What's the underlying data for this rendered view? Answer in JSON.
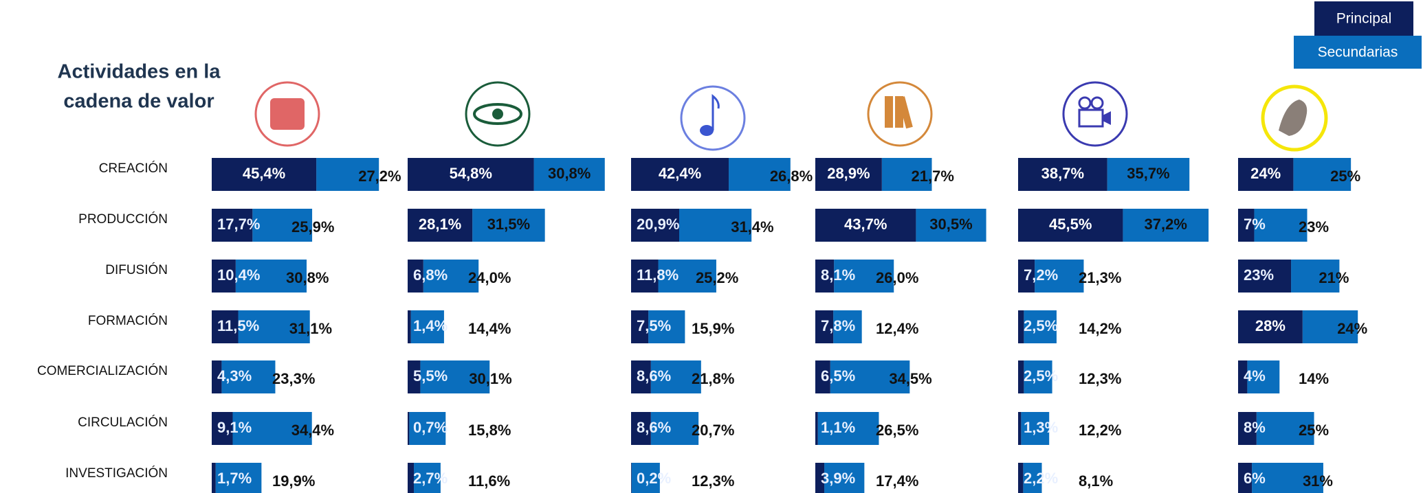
{
  "chart_data": {
    "type": "bar",
    "orientation": "horizontal",
    "stacked": true,
    "title": [
      "Actividades en la",
      "cadena de valor"
    ],
    "categories": [
      "CREACIÓN",
      "PRODUCCIÓN",
      "DIFUSIÓN",
      "FORMACIÓN",
      "COMERCIALIZACIÓN",
      "CIRCULACIÓN",
      "INVESTIGACIÓN"
    ],
    "legend": [
      {
        "name": "Principal",
        "color": "#0d1f5c"
      },
      {
        "name": "Secundarias",
        "color": "#0a6ebd"
      }
    ],
    "groups": [
      {
        "series": [
          {
            "values": [
              45.4,
              17.7,
              10.4,
              11.5,
              4.3,
              9.1,
              1.7
            ],
            "value_labels": [
              "45,4%",
              "17,7%",
              "10,4%",
              "11,5%",
              "4,3%",
              "9,1%",
              "1,7%"
            ]
          },
          {
            "values": [
              27.2,
              25.9,
              30.8,
              31.1,
              23.3,
              34.4,
              19.9
            ],
            "value_labels": [
              "27,2%",
              "25,9%",
              "30,8%",
              "31,1%",
              "23,3%",
              "34,4%",
              "19,9%"
            ]
          }
        ]
      },
      {
        "series": [
          {
            "values": [
              54.8,
              28.1,
              6.8,
              1.4,
              5.5,
              0.7,
              2.7
            ],
            "value_labels": [
              "54,8%",
              "28,1%",
              "6,8%",
              "1,4%",
              "5,5%",
              "0,7%",
              "2,7%"
            ]
          },
          {
            "values": [
              30.8,
              31.5,
              24.0,
              14.4,
              30.1,
              15.8,
              11.6
            ],
            "value_labels": [
              "30,8%",
              "31,5%",
              "24,0%",
              "14,4%",
              "30,1%",
              "15,8%",
              "11,6%"
            ]
          }
        ]
      },
      {
        "series": [
          {
            "values": [
              42.4,
              20.9,
              11.8,
              7.5,
              8.6,
              8.6,
              0.2
            ],
            "value_labels": [
              "42,4%",
              "20,9%",
              "11,8%",
              "7,5%",
              "8,6%",
              "8,6%",
              "0,2%"
            ]
          },
          {
            "values": [
              26.8,
              31.4,
              25.2,
              15.9,
              21.8,
              20.7,
              12.3
            ],
            "value_labels": [
              "26,8%",
              "31,4%",
              "25,2%",
              "15,9%",
              "21,8%",
              "20,7%",
              "12,3%"
            ]
          }
        ]
      },
      {
        "series": [
          {
            "values": [
              28.9,
              43.7,
              8.1,
              7.8,
              6.5,
              1.1,
              3.9
            ],
            "value_labels": [
              "28,9%",
              "43,7%",
              "8,1%",
              "7,8%",
              "6,5%",
              "1,1%",
              "3,9%"
            ]
          },
          {
            "values": [
              21.7,
              30.5,
              26.0,
              12.4,
              34.5,
              26.5,
              17.4
            ],
            "value_labels": [
              "21,7%",
              "30,5%",
              "26,0%",
              "12,4%",
              "34,5%",
              "26,5%",
              "17,4%"
            ]
          }
        ]
      },
      {
        "series": [
          {
            "values": [
              38.7,
              45.5,
              7.2,
              2.5,
              2.5,
              1.3,
              2.2
            ],
            "value_labels": [
              "38,7%",
              "45,5%",
              "7,2%",
              "2,5%",
              "2,5%",
              "1,3%",
              "2,2%"
            ]
          },
          {
            "values": [
              35.7,
              37.2,
              21.3,
              14.2,
              12.3,
              12.2,
              8.1
            ],
            "value_labels": [
              "35,7%",
              "37,2%",
              "21,3%",
              "14,2%",
              "12,3%",
              "12,2%",
              "8,1%"
            ]
          }
        ]
      },
      {
        "series": [
          {
            "values": [
              24,
              7,
              23,
              28,
              4,
              8,
              6
            ],
            "value_labels": [
              "24%",
              "7%",
              "23%",
              "28%",
              "4%",
              "8%",
              "6%"
            ]
          },
          {
            "values": [
              25,
              23,
              21,
              24,
              14,
              25,
              31
            ],
            "value_labels": [
              "25%",
              "23%",
              "21%",
              "24%",
              "14%",
              "25%",
              "31%"
            ]
          }
        ]
      }
    ]
  }
}
